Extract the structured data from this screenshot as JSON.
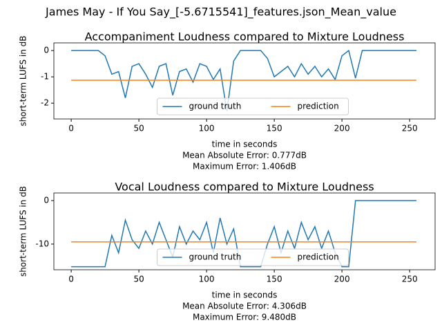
{
  "title": "James May - If You Say_[-5.6715541]_features.json_Mean_value",
  "chart_data": [
    {
      "type": "line",
      "title": "Accompaniment Loudness compared to Mixture Loudness",
      "xlabel": "time in seconds",
      "ylabel": "short-term LUFS in dB",
      "annotations": [
        "Mean Absolute Error: 0.777dB",
        "Maximum Error: 1.406dB"
      ],
      "x": [
        0,
        5,
        10,
        15,
        20,
        25,
        30,
        35,
        40,
        45,
        50,
        55,
        60,
        65,
        70,
        75,
        80,
        85,
        90,
        95,
        100,
        105,
        110,
        115,
        120,
        125,
        130,
        135,
        140,
        145,
        150,
        155,
        160,
        165,
        170,
        175,
        180,
        185,
        190,
        195,
        200,
        205,
        210,
        215,
        220,
        225,
        230,
        235,
        240,
        245,
        250,
        255
      ],
      "series": [
        {
          "name": "ground truth",
          "color": "#1f77b4",
          "values": [
            0,
            0,
            0,
            0,
            0,
            -0.2,
            -0.9,
            -0.8,
            -1.8,
            -0.6,
            -0.5,
            -0.9,
            -1.4,
            -0.6,
            -0.5,
            -1.7,
            -0.8,
            -0.7,
            -1.2,
            -0.5,
            -0.6,
            -1.1,
            -0.7,
            -2.3,
            -0.4,
            0,
            0,
            0,
            0,
            -0.3,
            -1.0,
            -0.8,
            -0.6,
            -1.0,
            -0.5,
            -0.9,
            -0.6,
            -1.0,
            -0.7,
            -1.1,
            -0.2,
            0,
            -1.05,
            0,
            0,
            0,
            0,
            0,
            0,
            0,
            0,
            0
          ]
        },
        {
          "name": "prediction",
          "color": "#ff7f0e",
          "values": [
            -1.13,
            -1.13,
            -1.13,
            -1.13,
            -1.13,
            -1.13,
            -1.13,
            -1.13,
            -1.13,
            -1.13,
            -1.13,
            -1.13,
            -1.13,
            -1.13,
            -1.13,
            -1.13,
            -1.13,
            -1.13,
            -1.13,
            -1.13,
            -1.13,
            -1.13,
            -1.13,
            -1.13,
            -1.13,
            -1.13,
            -1.13,
            -1.13,
            -1.13,
            -1.13,
            -1.13,
            -1.13,
            -1.13,
            -1.13,
            -1.13,
            -1.13,
            -1.13,
            -1.13,
            -1.13,
            -1.13,
            -1.13,
            -1.13,
            -1.13,
            -1.13,
            -1.13,
            -1.13,
            -1.13,
            -1.13,
            -1.13,
            -1.13,
            -1.13,
            -1.13
          ]
        }
      ],
      "xlim": [
        -12.8,
        268.8
      ],
      "xticks": [
        0,
        50,
        100,
        150,
        200,
        250
      ],
      "ylim": [
        -2.6,
        0.29
      ],
      "yticks": [
        -2,
        -1,
        0
      ],
      "legend": "lower center"
    },
    {
      "type": "line",
      "title": "Vocal Loudness compared to Mixture Loudness",
      "xlabel": "time in seconds",
      "ylabel": "short-term LUFS in dB",
      "annotations": [
        "Mean Absolute Error: 4.306dB",
        "Maximum Error: 9.480dB"
      ],
      "x": [
        0,
        5,
        10,
        15,
        20,
        25,
        30,
        35,
        40,
        45,
        50,
        55,
        60,
        65,
        70,
        75,
        80,
        85,
        90,
        95,
        100,
        105,
        110,
        115,
        120,
        125,
        130,
        135,
        140,
        145,
        150,
        155,
        160,
        165,
        170,
        175,
        180,
        185,
        190,
        195,
        200,
        205,
        210,
        215,
        220,
        225,
        230,
        235,
        240,
        245,
        250,
        255
      ],
      "series": [
        {
          "name": "ground truth",
          "color": "#1f77b4",
          "values": [
            -15.2,
            -15.2,
            -15.2,
            -15.2,
            -15.2,
            -15.2,
            -8,
            -12,
            -4.5,
            -9,
            -11,
            -7,
            -10,
            -5,
            -9,
            -13,
            -6,
            -10,
            -7,
            -9,
            -5,
            -12,
            -4,
            -10,
            -6.5,
            -15.2,
            -15.2,
            -15.2,
            -15.2,
            -10,
            -6,
            -12,
            -7,
            -11,
            -5,
            -9,
            -6,
            -11,
            -7,
            -12,
            -15.2,
            -15.2,
            0,
            0,
            0,
            0,
            0,
            0,
            0,
            0,
            0,
            0
          ]
        },
        {
          "name": "prediction",
          "color": "#ff7f0e",
          "values": [
            -9.5,
            -9.5,
            -9.5,
            -9.5,
            -9.5,
            -9.5,
            -9.5,
            -9.5,
            -9.5,
            -9.5,
            -9.5,
            -9.5,
            -9.5,
            -9.5,
            -9.5,
            -9.5,
            -9.5,
            -9.5,
            -9.5,
            -9.5,
            -9.5,
            -9.5,
            -9.5,
            -9.5,
            -9.5,
            -9.5,
            -9.5,
            -9.5,
            -9.5,
            -9.5,
            -9.5,
            -9.5,
            -9.5,
            -9.5,
            -9.5,
            -9.5,
            -9.5,
            -9.5,
            -9.5,
            -9.5,
            -9.5,
            -9.5,
            -9.5,
            -9.5,
            -9.5,
            -9.5,
            -9.5,
            -9.5,
            -9.5,
            -9.5,
            -9.5,
            -9.5
          ]
        }
      ],
      "xlim": [
        -12.8,
        268.8
      ],
      "xticks": [
        0,
        50,
        100,
        150,
        200,
        250
      ],
      "ylim": [
        -15.9,
        1.75
      ],
      "yticks": [
        -10,
        0
      ],
      "legend": "lower center"
    }
  ]
}
